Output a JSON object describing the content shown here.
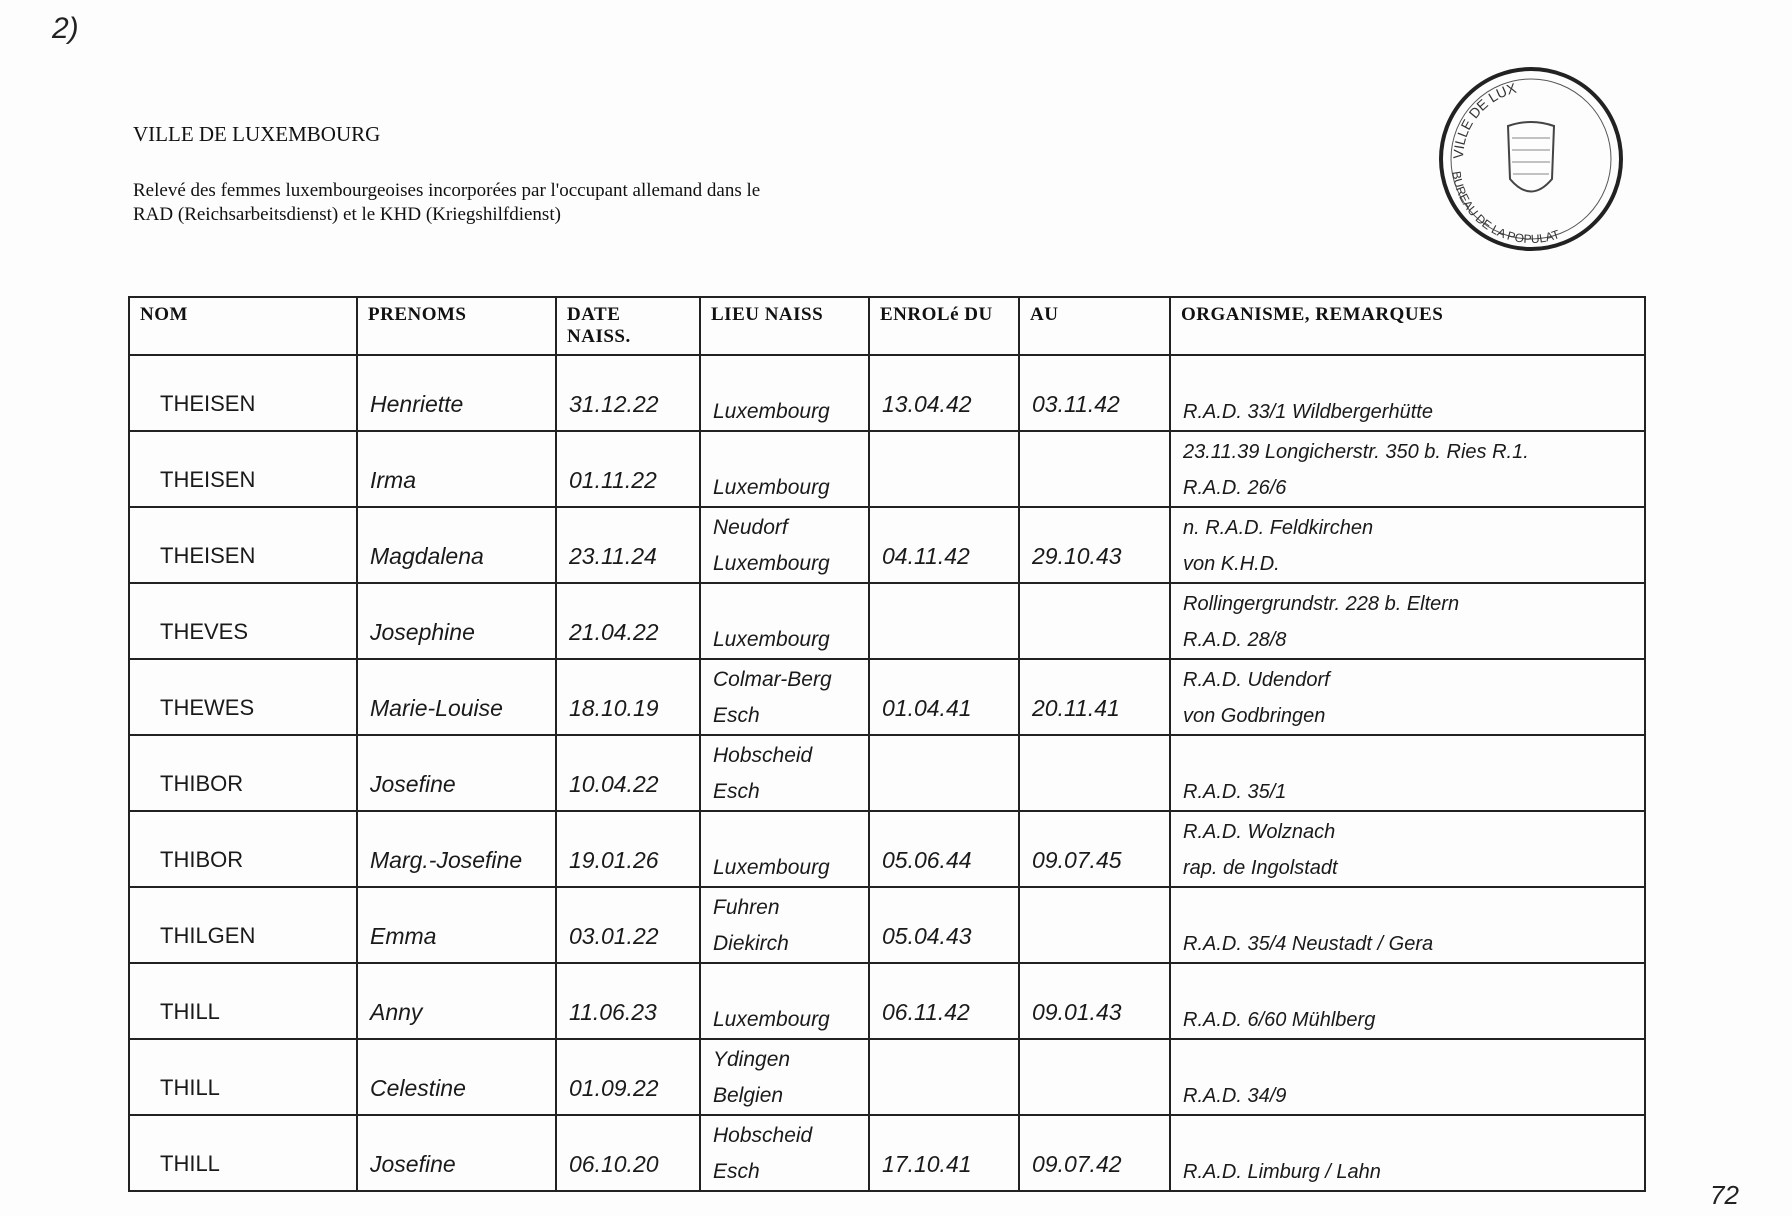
{
  "corner_mark": "2)",
  "page_number": "72",
  "header": {
    "title": "VILLE DE LUXEMBOURG",
    "subtitle_line1": "Relevé des femmes luxembourgeoises incorporées par l'occupant allemand dans le",
    "subtitle_line2": "RAD (Reichsarbeitsdienst) et le KHD (Kriegshilfdienst)"
  },
  "stamp": {
    "top_text": "VILLE DE LUX",
    "bottom_text": "BUREAU DE LA POPULAT"
  },
  "table": {
    "columns": [
      "NOM",
      "PRENOMS",
      "DATE NAISS.",
      "LIEU NAISS",
      "ENROLé DU",
      "AU",
      "ORGANISME, REMARQUES"
    ],
    "rows": [
      {
        "nom": "THEISEN",
        "prenoms": "Henriette",
        "date": "31.12.22",
        "lieu": [
          "",
          "Luxembourg"
        ],
        "du": "13.04.42",
        "au": "03.11.42",
        "remarques": [
          "",
          "R.A.D. 33/1 Wildbergerhütte"
        ]
      },
      {
        "nom": "THEISEN",
        "prenoms": "Irma",
        "date": "01.11.22",
        "lieu": [
          "",
          "Luxembourg"
        ],
        "du": "",
        "au": "",
        "remarques": [
          "23.11.39 Longicherstr. 350 b. Ries R.1.",
          "R.A.D. 26/6"
        ]
      },
      {
        "nom": "THEISEN",
        "prenoms": "Magdalena",
        "date": "23.11.24",
        "lieu": [
          "Neudorf",
          "Luxembourg"
        ],
        "du": "04.11.42",
        "au": "29.10.43",
        "remarques": [
          "n. R.A.D. Feldkirchen",
          "von K.H.D."
        ]
      },
      {
        "nom": "THEVES",
        "prenoms": "Josephine",
        "date": "21.04.22",
        "lieu": [
          "",
          "Luxembourg"
        ],
        "du": "",
        "au": "",
        "remarques": [
          "Rollingergrundstr. 228 b. Eltern",
          "R.A.D. 28/8"
        ]
      },
      {
        "nom": "THEWES",
        "prenoms": "Marie-Louise",
        "date": "18.10.19",
        "lieu": [
          "Colmar-Berg",
          "Esch"
        ],
        "du": "01.04.41",
        "au": "20.11.41",
        "remarques": [
          "R.A.D. Udendorf",
          "von Godbringen"
        ]
      },
      {
        "nom": "THIBOR",
        "prenoms": "Josefine",
        "date": "10.04.22",
        "lieu": [
          "Hobscheid",
          "Esch"
        ],
        "du": "",
        "au": "",
        "remarques": [
          "",
          "R.A.D. 35/1"
        ]
      },
      {
        "nom": "THIBOR",
        "prenoms": "Marg.-Josefine",
        "date": "19.01.26",
        "lieu": [
          "",
          "Luxembourg"
        ],
        "du": "05.06.44",
        "au": "09.07.45",
        "remarques": [
          "R.A.D. Wolznach",
          "rap. de Ingolstadt"
        ]
      },
      {
        "nom": "THILGEN",
        "prenoms": "Emma",
        "date": "03.01.22",
        "lieu": [
          "Fuhren",
          "Diekirch"
        ],
        "du": "05.04.43",
        "au": "",
        "remarques": [
          "",
          "R.A.D. 35/4 Neustadt / Gera"
        ]
      },
      {
        "nom": "THILL",
        "prenoms": "Anny",
        "date": "11.06.23",
        "lieu": [
          "",
          "Luxembourg"
        ],
        "du": "06.11.42",
        "au": "09.01.43",
        "remarques": [
          "",
          "R.A.D. 6/60 Mühlberg"
        ]
      },
      {
        "nom": "THILL",
        "prenoms": "Celestine",
        "date": "01.09.22",
        "lieu": [
          "Ydingen",
          "Belgien"
        ],
        "du": "",
        "au": "",
        "remarques": [
          "",
          "R.A.D. 34/9"
        ]
      },
      {
        "nom": "THILL",
        "prenoms": "Josefine",
        "date": "06.10.20",
        "lieu": [
          "Hobscheid",
          "Esch"
        ],
        "du": "17.10.41",
        "au": "09.07.42",
        "remarques": [
          "",
          "R.A.D. Limburg / Lahn"
        ]
      }
    ]
  }
}
